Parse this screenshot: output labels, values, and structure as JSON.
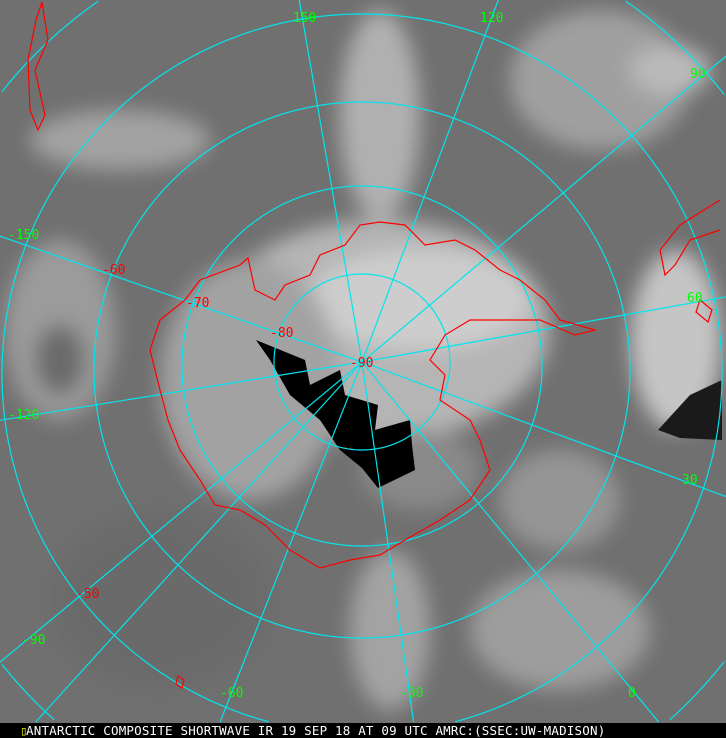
{
  "caption": "ANTARCTIC COMPOSITE SHORTWAVE IR 19 SEP 18 AT 09 UTC AMRC:(SSEC:UW-MADISON)",
  "caption_marker": "▯",
  "colors": {
    "grid": "#00e5ee",
    "coastline": "#ff0000",
    "longitude_labels": "#00ff00",
    "latitude_labels": "#ff0000",
    "no_data": "#000000"
  },
  "longitude_labels": [
    "150",
    "120",
    "90",
    "60",
    "30",
    "0",
    "-30",
    "-60",
    "-90",
    "-120",
    "-150"
  ],
  "latitude_labels": [
    "-50",
    "-60",
    "-70",
    "-80",
    "-90"
  ]
}
